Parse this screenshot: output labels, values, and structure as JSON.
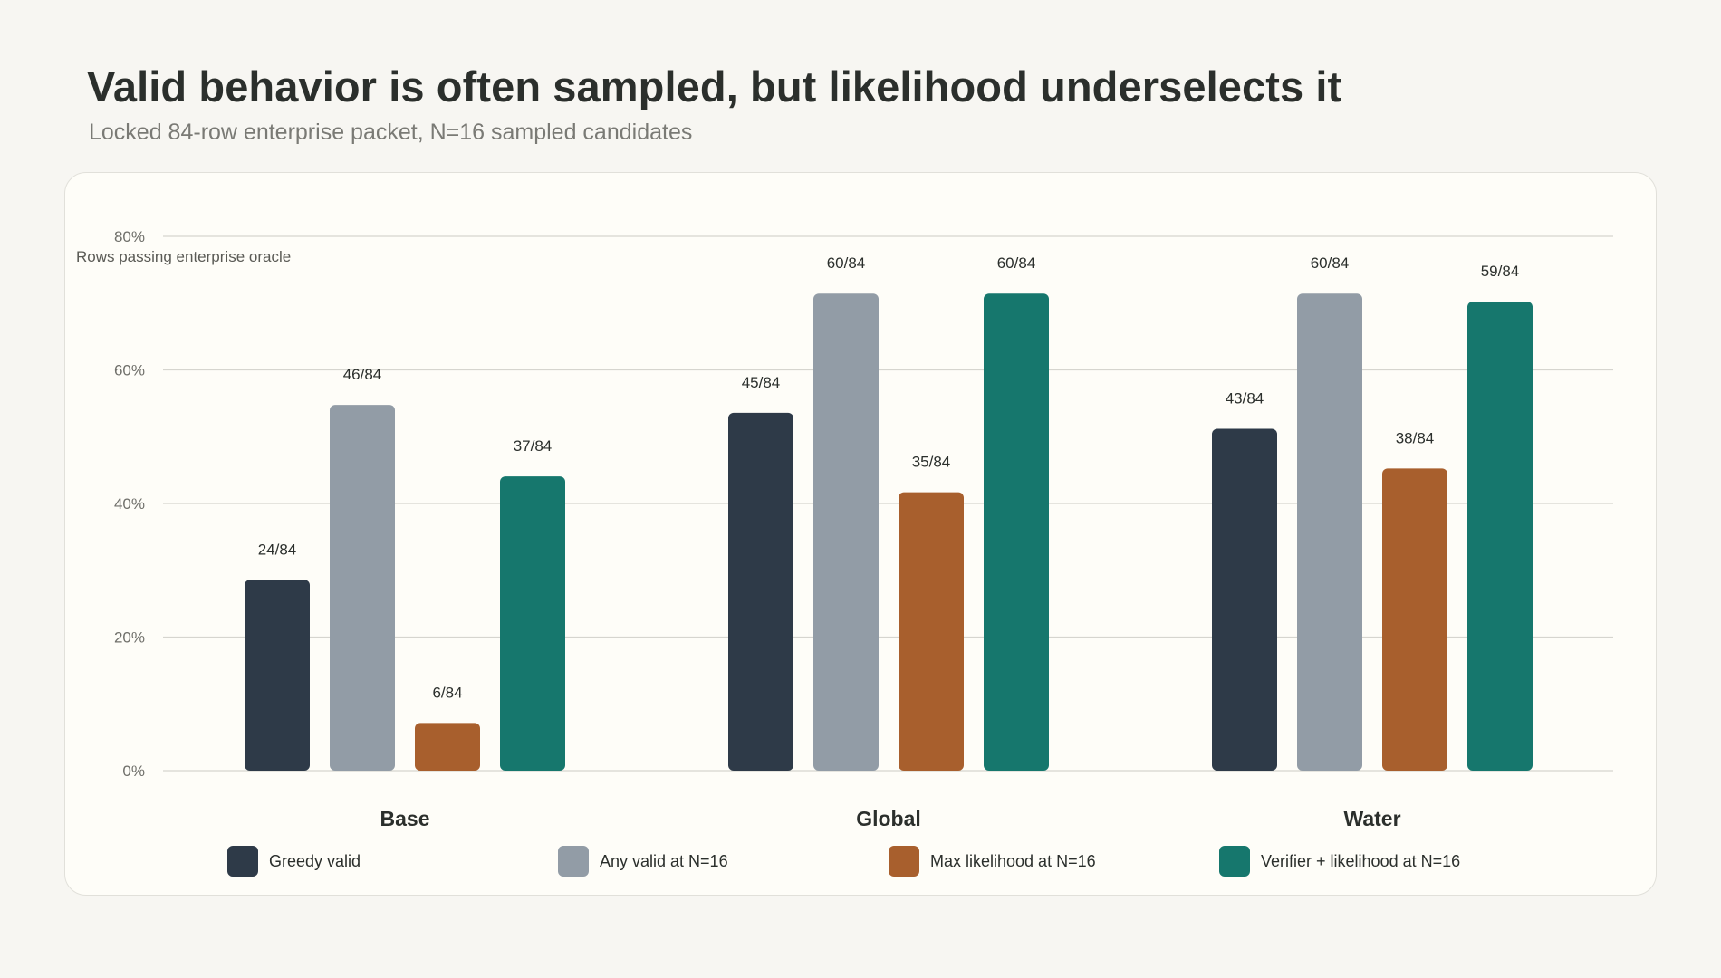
{
  "title": "Valid behavior is often sampled, but likelihood underselects it",
  "subtitle": "Locked 84-row enterprise packet, N=16 sampled candidates",
  "chart_data": {
    "type": "bar",
    "ylabel": "Rows passing enterprise oracle",
    "ylim": [
      0,
      80
    ],
    "yticks": [
      "0%",
      "20%",
      "40%",
      "60%",
      "80%"
    ],
    "ytick_values": [
      0,
      20,
      40,
      60,
      80
    ],
    "grid": true,
    "legend_position": "bottom",
    "categories": [
      "Base",
      "Global",
      "Water"
    ],
    "series": [
      {
        "name": "Greedy valid",
        "color": "#2e3a48",
        "values": [
          28.57,
          53.57,
          51.19
        ],
        "labels": [
          "24/84",
          "45/84",
          "43/84"
        ]
      },
      {
        "name": "Any valid at N=16",
        "color": "#929ca6",
        "values": [
          54.76,
          71.43,
          71.43
        ],
        "labels": [
          "46/84",
          "60/84",
          "60/84"
        ]
      },
      {
        "name": "Max likelihood at N=16",
        "color": "#a85f2d",
        "values": [
          7.14,
          41.67,
          45.24
        ],
        "labels": [
          "6/84",
          "35/84",
          "38/84"
        ]
      },
      {
        "name": "Verifier + likelihood at N=16",
        "color": "#16776d",
        "values": [
          44.05,
          71.43,
          70.24
        ],
        "labels": [
          "37/84",
          "60/84",
          "59/84"
        ]
      }
    ]
  }
}
